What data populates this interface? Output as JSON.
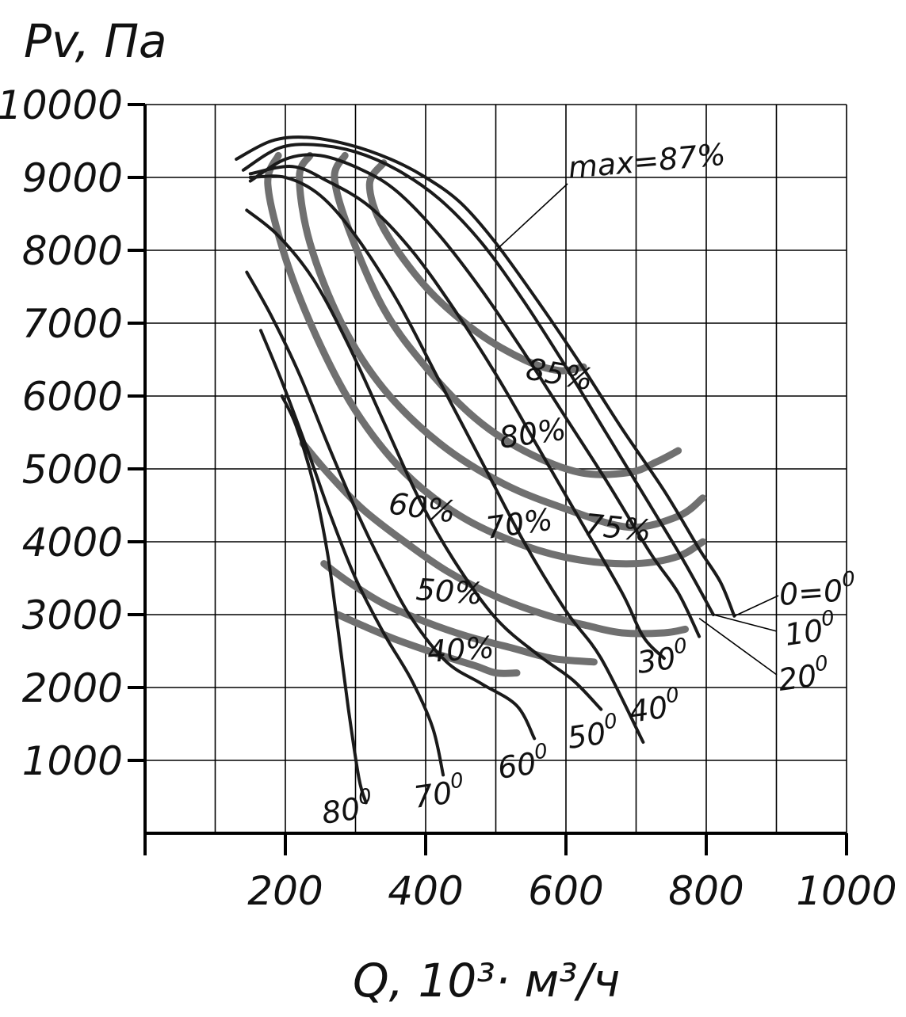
{
  "chart_data": {
    "type": "line",
    "title": "",
    "ylabel": "Pv, Па",
    "xlabel": "Q, 10³· м³/ч",
    "xlim": [
      0,
      1000
    ],
    "ylim": [
      0,
      10000
    ],
    "x_ticks": [
      "200",
      "400",
      "600",
      "800",
      "1000"
    ],
    "y_ticks": [
      "10000",
      "9000",
      "8000",
      "7000",
      "6000",
      "5000",
      "4000",
      "3000",
      "2000",
      "1000"
    ],
    "grid": true,
    "series": [
      {
        "name": "0=0",
        "kind": "blade-angle",
        "points": [
          [
            130,
            9250
          ],
          [
            180,
            9500
          ],
          [
            230,
            9550
          ],
          [
            290,
            9450
          ],
          [
            350,
            9250
          ],
          [
            400,
            9000
          ],
          [
            450,
            8650
          ],
          [
            500,
            8100
          ],
          [
            560,
            7300
          ],
          [
            620,
            6450
          ],
          [
            680,
            5550
          ],
          [
            740,
            4700
          ],
          [
            790,
            3900
          ],
          [
            820,
            3450
          ],
          [
            840,
            2980
          ]
        ]
      },
      {
        "name": "10",
        "kind": "blade-angle",
        "points": [
          [
            140,
            9100
          ],
          [
            190,
            9400
          ],
          [
            240,
            9450
          ],
          [
            300,
            9350
          ],
          [
            360,
            9100
          ],
          [
            420,
            8700
          ],
          [
            480,
            8100
          ],
          [
            540,
            7300
          ],
          [
            600,
            6400
          ],
          [
            660,
            5450
          ],
          [
            720,
            4500
          ],
          [
            770,
            3700
          ],
          [
            810,
            3000
          ]
        ]
      },
      {
        "name": "20",
        "kind": "blade-angle",
        "points": [
          [
            150,
            8950
          ],
          [
            200,
            9250
          ],
          [
            250,
            9300
          ],
          [
            310,
            9100
          ],
          [
            360,
            8800
          ],
          [
            420,
            8200
          ],
          [
            480,
            7450
          ],
          [
            540,
            6600
          ],
          [
            600,
            5700
          ],
          [
            660,
            4800
          ],
          [
            720,
            3850
          ],
          [
            760,
            3300
          ],
          [
            790,
            2700
          ]
        ]
      },
      {
        "name": "30",
        "kind": "blade-angle",
        "points": [
          [
            150,
            9050
          ],
          [
            210,
            9150
          ],
          [
            260,
            8950
          ],
          [
            320,
            8600
          ],
          [
            380,
            8000
          ],
          [
            440,
            7200
          ],
          [
            500,
            6300
          ],
          [
            560,
            5300
          ],
          [
            620,
            4300
          ],
          [
            680,
            3300
          ],
          [
            710,
            2700
          ],
          [
            740,
            2400
          ]
        ]
      },
      {
        "name": "40",
        "kind": "blade-angle",
        "points": [
          [
            150,
            9000
          ],
          [
            200,
            9000
          ],
          [
            250,
            8750
          ],
          [
            300,
            8200
          ],
          [
            360,
            7300
          ],
          [
            420,
            6200
          ],
          [
            480,
            5100
          ],
          [
            540,
            4000
          ],
          [
            600,
            3050
          ],
          [
            650,
            2400
          ],
          [
            710,
            1250
          ]
        ]
      },
      {
        "name": "50",
        "kind": "blade-angle",
        "points": [
          [
            145,
            8550
          ],
          [
            190,
            8200
          ],
          [
            240,
            7600
          ],
          [
            290,
            6700
          ],
          [
            340,
            5650
          ],
          [
            390,
            4600
          ],
          [
            440,
            3750
          ],
          [
            500,
            2950
          ],
          [
            560,
            2450
          ],
          [
            610,
            2100
          ],
          [
            650,
            1700
          ]
        ]
      },
      {
        "name": "60",
        "kind": "blade-angle",
        "points": [
          [
            145,
            7700
          ],
          [
            180,
            7100
          ],
          [
            220,
            6300
          ],
          [
            260,
            5350
          ],
          [
            300,
            4450
          ],
          [
            340,
            3650
          ],
          [
            380,
            2950
          ],
          [
            430,
            2350
          ],
          [
            480,
            2050
          ],
          [
            530,
            1750
          ],
          [
            555,
            1300
          ]
        ]
      },
      {
        "name": "70",
        "kind": "blade-angle",
        "points": [
          [
            165,
            6900
          ],
          [
            195,
            6200
          ],
          [
            230,
            5300
          ],
          [
            265,
            4350
          ],
          [
            300,
            3500
          ],
          [
            340,
            2750
          ],
          [
            380,
            2100
          ],
          [
            410,
            1450
          ],
          [
            425,
            800
          ]
        ]
      },
      {
        "name": "80",
        "kind": "blade-angle",
        "points": [
          [
            195,
            6000
          ],
          [
            215,
            5600
          ],
          [
            240,
            4800
          ],
          [
            260,
            3850
          ],
          [
            275,
            2800
          ],
          [
            290,
            1700
          ],
          [
            305,
            750
          ],
          [
            315,
            420
          ]
        ]
      },
      {
        "name": "85%",
        "kind": "efficiency",
        "points": [
          [
            340,
            9200
          ],
          [
            320,
            8900
          ],
          [
            340,
            8300
          ],
          [
            400,
            7500
          ],
          [
            470,
            6900
          ],
          [
            540,
            6500
          ],
          [
            590,
            6350
          ],
          [
            625,
            6400
          ]
        ]
      },
      {
        "name": "80%",
        "kind": "efficiency",
        "points": [
          [
            285,
            9300
          ],
          [
            270,
            9000
          ],
          [
            290,
            8300
          ],
          [
            340,
            7200
          ],
          [
            400,
            6400
          ],
          [
            470,
            5700
          ],
          [
            540,
            5250
          ],
          [
            620,
            4950
          ],
          [
            690,
            4950
          ],
          [
            730,
            5100
          ],
          [
            760,
            5250
          ]
        ]
      },
      {
        "name": "75%",
        "kind": "efficiency",
        "points": [
          [
            235,
            9300
          ],
          [
            220,
            9000
          ],
          [
            235,
            8100
          ],
          [
            280,
            7000
          ],
          [
            340,
            6100
          ],
          [
            420,
            5350
          ],
          [
            510,
            4800
          ],
          [
            600,
            4450
          ],
          [
            690,
            4200
          ],
          [
            760,
            4350
          ],
          [
            795,
            4600
          ]
        ]
      },
      {
        "name": "70%",
        "kind": "efficiency",
        "points": [
          [
            190,
            9300
          ],
          [
            175,
            8900
          ],
          [
            200,
            7900
          ],
          [
            245,
            6800
          ],
          [
            300,
            5800
          ],
          [
            370,
            4950
          ],
          [
            450,
            4350
          ],
          [
            540,
            3950
          ],
          [
            620,
            3750
          ],
          [
            700,
            3700
          ],
          [
            760,
            3800
          ],
          [
            795,
            4000
          ]
        ]
      },
      {
        "name": "60%",
        "kind": "efficiency",
        "points": [
          [
            225,
            5350
          ],
          [
            260,
            4950
          ],
          [
            310,
            4450
          ],
          [
            370,
            4000
          ],
          [
            430,
            3600
          ],
          [
            500,
            3250
          ],
          [
            570,
            3000
          ],
          [
            630,
            2850
          ],
          [
            680,
            2750
          ],
          [
            740,
            2750
          ],
          [
            770,
            2800
          ]
        ]
      },
      {
        "name": "50%",
        "kind": "efficiency",
        "points": [
          [
            255,
            3700
          ],
          [
            290,
            3450
          ],
          [
            340,
            3150
          ],
          [
            400,
            2900
          ],
          [
            460,
            2700
          ],
          [
            520,
            2550
          ],
          [
            580,
            2400
          ],
          [
            640,
            2350
          ]
        ]
      },
      {
        "name": "40%",
        "kind": "efficiency",
        "points": [
          [
            275,
            3000
          ],
          [
            310,
            2850
          ],
          [
            360,
            2650
          ],
          [
            420,
            2450
          ],
          [
            470,
            2300
          ],
          [
            500,
            2200
          ],
          [
            530,
            2200
          ]
        ]
      }
    ],
    "annotations": [
      "max=87%",
      "85%",
      "80%",
      "75%",
      "70%",
      "60%",
      "50%",
      "40%"
    ],
    "blade_labels": [
      "0=0",
      "10",
      "20",
      "30",
      "40",
      "50",
      "60",
      "70",
      "80"
    ],
    "degree_mark": "0"
  }
}
